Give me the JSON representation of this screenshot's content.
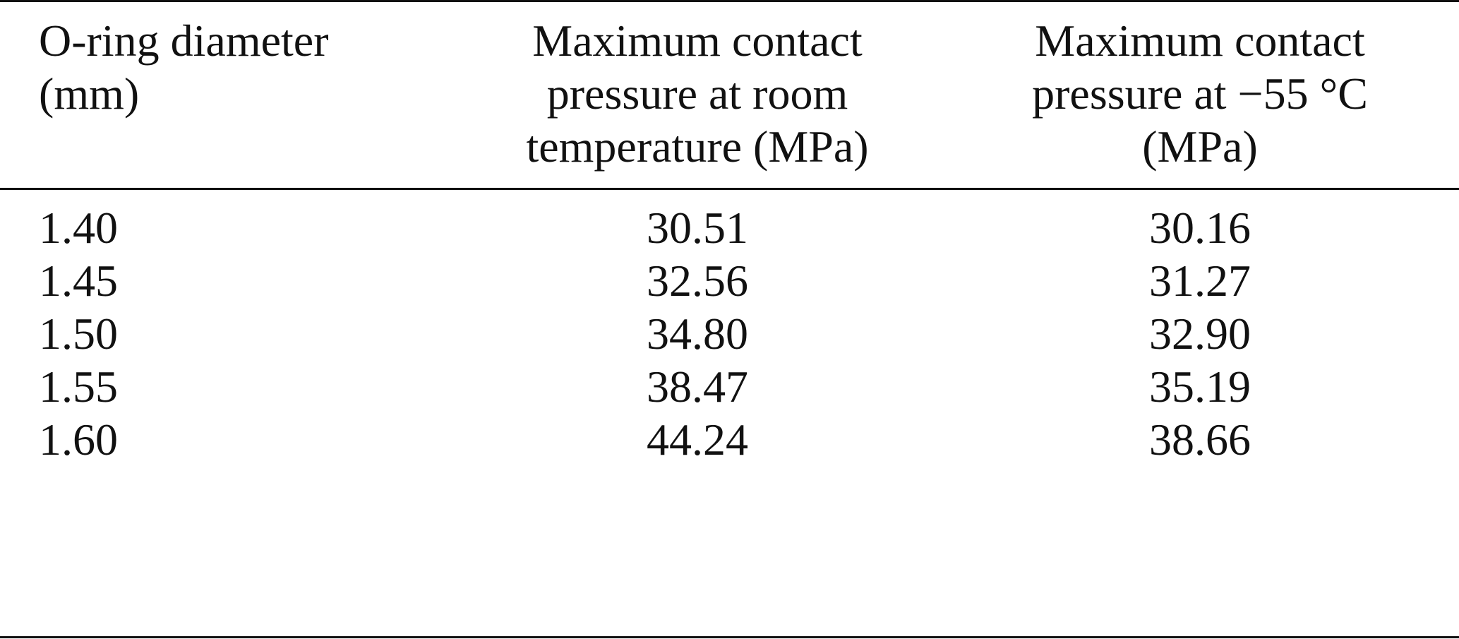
{
  "table": {
    "header": [
      [
        "O-ring diameter",
        "(mm)"
      ],
      [
        "Maximum contact",
        "pressure at room",
        "temperature (MPa)"
      ],
      [
        "Maximum contact",
        "pressure at −55 °C",
        "(MPa)"
      ]
    ],
    "rows": [
      [
        "1.40",
        "30.51",
        "30.16"
      ],
      [
        "1.45",
        "32.56",
        "31.27"
      ],
      [
        "1.50",
        "34.80",
        "32.90"
      ],
      [
        "1.55",
        "38.47",
        "35.19"
      ],
      [
        "1.60",
        "44.24",
        "38.66"
      ]
    ]
  }
}
